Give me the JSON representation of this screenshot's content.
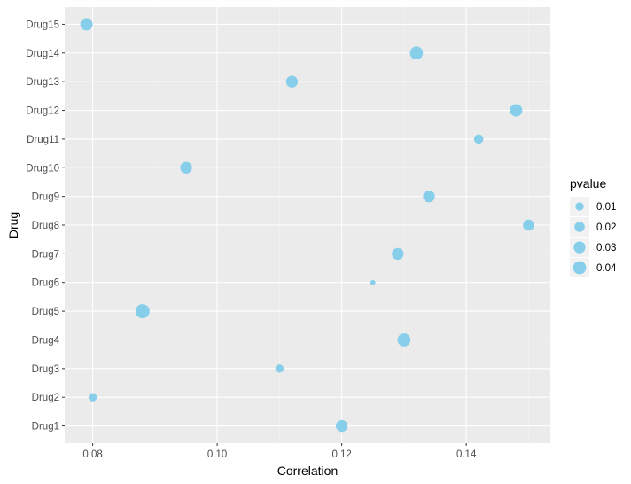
{
  "chart_data": {
    "type": "scatter",
    "title": "",
    "xlabel": "Correlation",
    "ylabel": "Drug",
    "xlim": [
      0.0755,
      0.1535
    ],
    "x_ticks": [
      0.08,
      0.1,
      0.12,
      0.14
    ],
    "x_tick_labels": [
      "0.08",
      "0.10",
      "0.12",
      "0.14"
    ],
    "categories": [
      "Drug1",
      "Drug2",
      "Drug3",
      "Drug4",
      "Drug5",
      "Drug6",
      "Drug7",
      "Drug8",
      "Drug9",
      "Drug10",
      "Drug11",
      "Drug12",
      "Drug13",
      "Drug14",
      "Drug15"
    ],
    "points": [
      {
        "drug": "Drug1",
        "x": 0.12,
        "pvalue": 0.03
      },
      {
        "drug": "Drug2",
        "x": 0.08,
        "pvalue": 0.01
      },
      {
        "drug": "Drug3",
        "x": 0.11,
        "pvalue": 0.01
      },
      {
        "drug": "Drug4",
        "x": 0.13,
        "pvalue": 0.04
      },
      {
        "drug": "Drug5",
        "x": 0.088,
        "pvalue": 0.05
      },
      {
        "drug": "Drug6",
        "x": 0.125,
        "pvalue": 0.001
      },
      {
        "drug": "Drug7",
        "x": 0.129,
        "pvalue": 0.03
      },
      {
        "drug": "Drug8",
        "x": 0.15,
        "pvalue": 0.025
      },
      {
        "drug": "Drug9",
        "x": 0.134,
        "pvalue": 0.03
      },
      {
        "drug": "Drug10",
        "x": 0.095,
        "pvalue": 0.03
      },
      {
        "drug": "Drug11",
        "x": 0.142,
        "pvalue": 0.015
      },
      {
        "drug": "Drug12",
        "x": 0.148,
        "pvalue": 0.035
      },
      {
        "drug": "Drug13",
        "x": 0.112,
        "pvalue": 0.03
      },
      {
        "drug": "Drug14",
        "x": 0.132,
        "pvalue": 0.04
      },
      {
        "drug": "Drug15",
        "x": 0.079,
        "pvalue": 0.035
      }
    ],
    "size_variable": "pvalue",
    "legend": {
      "title": "pvalue",
      "placement": "right",
      "entries": [
        {
          "label": "0.01",
          "value": 0.01
        },
        {
          "label": "0.02",
          "value": 0.02
        },
        {
          "label": "0.03",
          "value": 0.03
        },
        {
          "label": "0.04",
          "value": 0.04
        }
      ]
    },
    "grid": true,
    "colors": {
      "point": "#87ceeb",
      "panel_background": "#ebebeb",
      "grid_major": "#ffffff",
      "grid_minor": "#f4f4f4"
    }
  }
}
